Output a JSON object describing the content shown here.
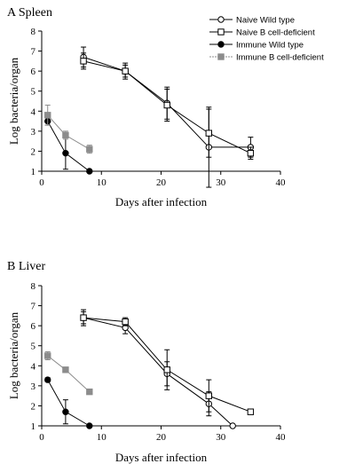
{
  "chart_data": [
    {
      "type": "line",
      "title": "A  Spleen",
      "xlabel": "Days after infection",
      "ylabel": "Log bacteria/organ",
      "xlim": [
        0,
        40
      ],
      "ylim": [
        1,
        8
      ],
      "xticks": [
        0,
        10,
        20,
        30,
        40
      ],
      "yticks": [
        1,
        2,
        3,
        4,
        5,
        6,
        7,
        8
      ],
      "grid": false,
      "legend_position": "top-right",
      "series": [
        {
          "name": "Naive Wild type",
          "marker": "open-circle",
          "color": "#000000",
          "x": [
            7,
            14,
            21,
            28,
            35
          ],
          "y": [
            6.7,
            6.0,
            4.4,
            2.2,
            2.2
          ],
          "err": [
            0.5,
            0.4,
            0.8,
            2.0,
            0.5
          ]
        },
        {
          "name": "Naive B cell-deficient",
          "marker": "open-square",
          "color": "#000000",
          "x": [
            7,
            14,
            21,
            28,
            35
          ],
          "y": [
            6.5,
            6.0,
            4.3,
            2.9,
            1.9
          ],
          "err": [
            0.4,
            0.3,
            0.8,
            1.2,
            0.3
          ]
        },
        {
          "name": "Immune Wild type",
          "marker": "filled-circle",
          "color": "#000000",
          "x": [
            1,
            4,
            8
          ],
          "y": [
            3.5,
            1.9,
            1.0
          ],
          "err": [
            0.2,
            0.8,
            0
          ]
        },
        {
          "name": "Immune B cell-deficient",
          "marker": "filled-square",
          "color": "#8c8c8c",
          "x": [
            1,
            4,
            8
          ],
          "y": [
            3.8,
            2.8,
            2.1
          ],
          "err": [
            0.5,
            0.2,
            0.2
          ]
        }
      ]
    },
    {
      "type": "line",
      "title": "B  Liver",
      "xlabel": "Days after infection",
      "ylabel": "Log bacteria/organ",
      "xlim": [
        0,
        40
      ],
      "ylim": [
        1,
        8
      ],
      "xticks": [
        0,
        10,
        20,
        30,
        40
      ],
      "yticks": [
        1,
        2,
        3,
        4,
        5,
        6,
        7,
        8
      ],
      "grid": false,
      "series": [
        {
          "name": "Naive Wild type",
          "marker": "open-circle",
          "color": "#000000",
          "x": [
            7,
            14,
            21,
            28,
            32
          ],
          "y": [
            6.4,
            5.9,
            3.6,
            2.1,
            1.0
          ],
          "err": [
            0.4,
            0.3,
            0.6,
            0.6,
            0
          ]
        },
        {
          "name": "Naive B cell-deficient",
          "marker": "open-square",
          "color": "#000000",
          "x": [
            7,
            14,
            21,
            28,
            35
          ],
          "y": [
            6.4,
            6.2,
            3.8,
            2.5,
            1.7
          ],
          "err": [
            0.3,
            0.2,
            1.0,
            0.8,
            0
          ]
        },
        {
          "name": "Immune Wild type",
          "marker": "filled-circle",
          "color": "#000000",
          "x": [
            1,
            4,
            8
          ],
          "y": [
            3.3,
            1.7,
            1.0
          ],
          "err": [
            0.1,
            0.6,
            0
          ]
        },
        {
          "name": "Immune B cell-deficient",
          "marker": "filled-square",
          "color": "#8c8c8c",
          "x": [
            1,
            4,
            8
          ],
          "y": [
            4.5,
            3.8,
            2.7
          ],
          "err": [
            0.2,
            0.1,
            0.1
          ]
        }
      ]
    }
  ]
}
